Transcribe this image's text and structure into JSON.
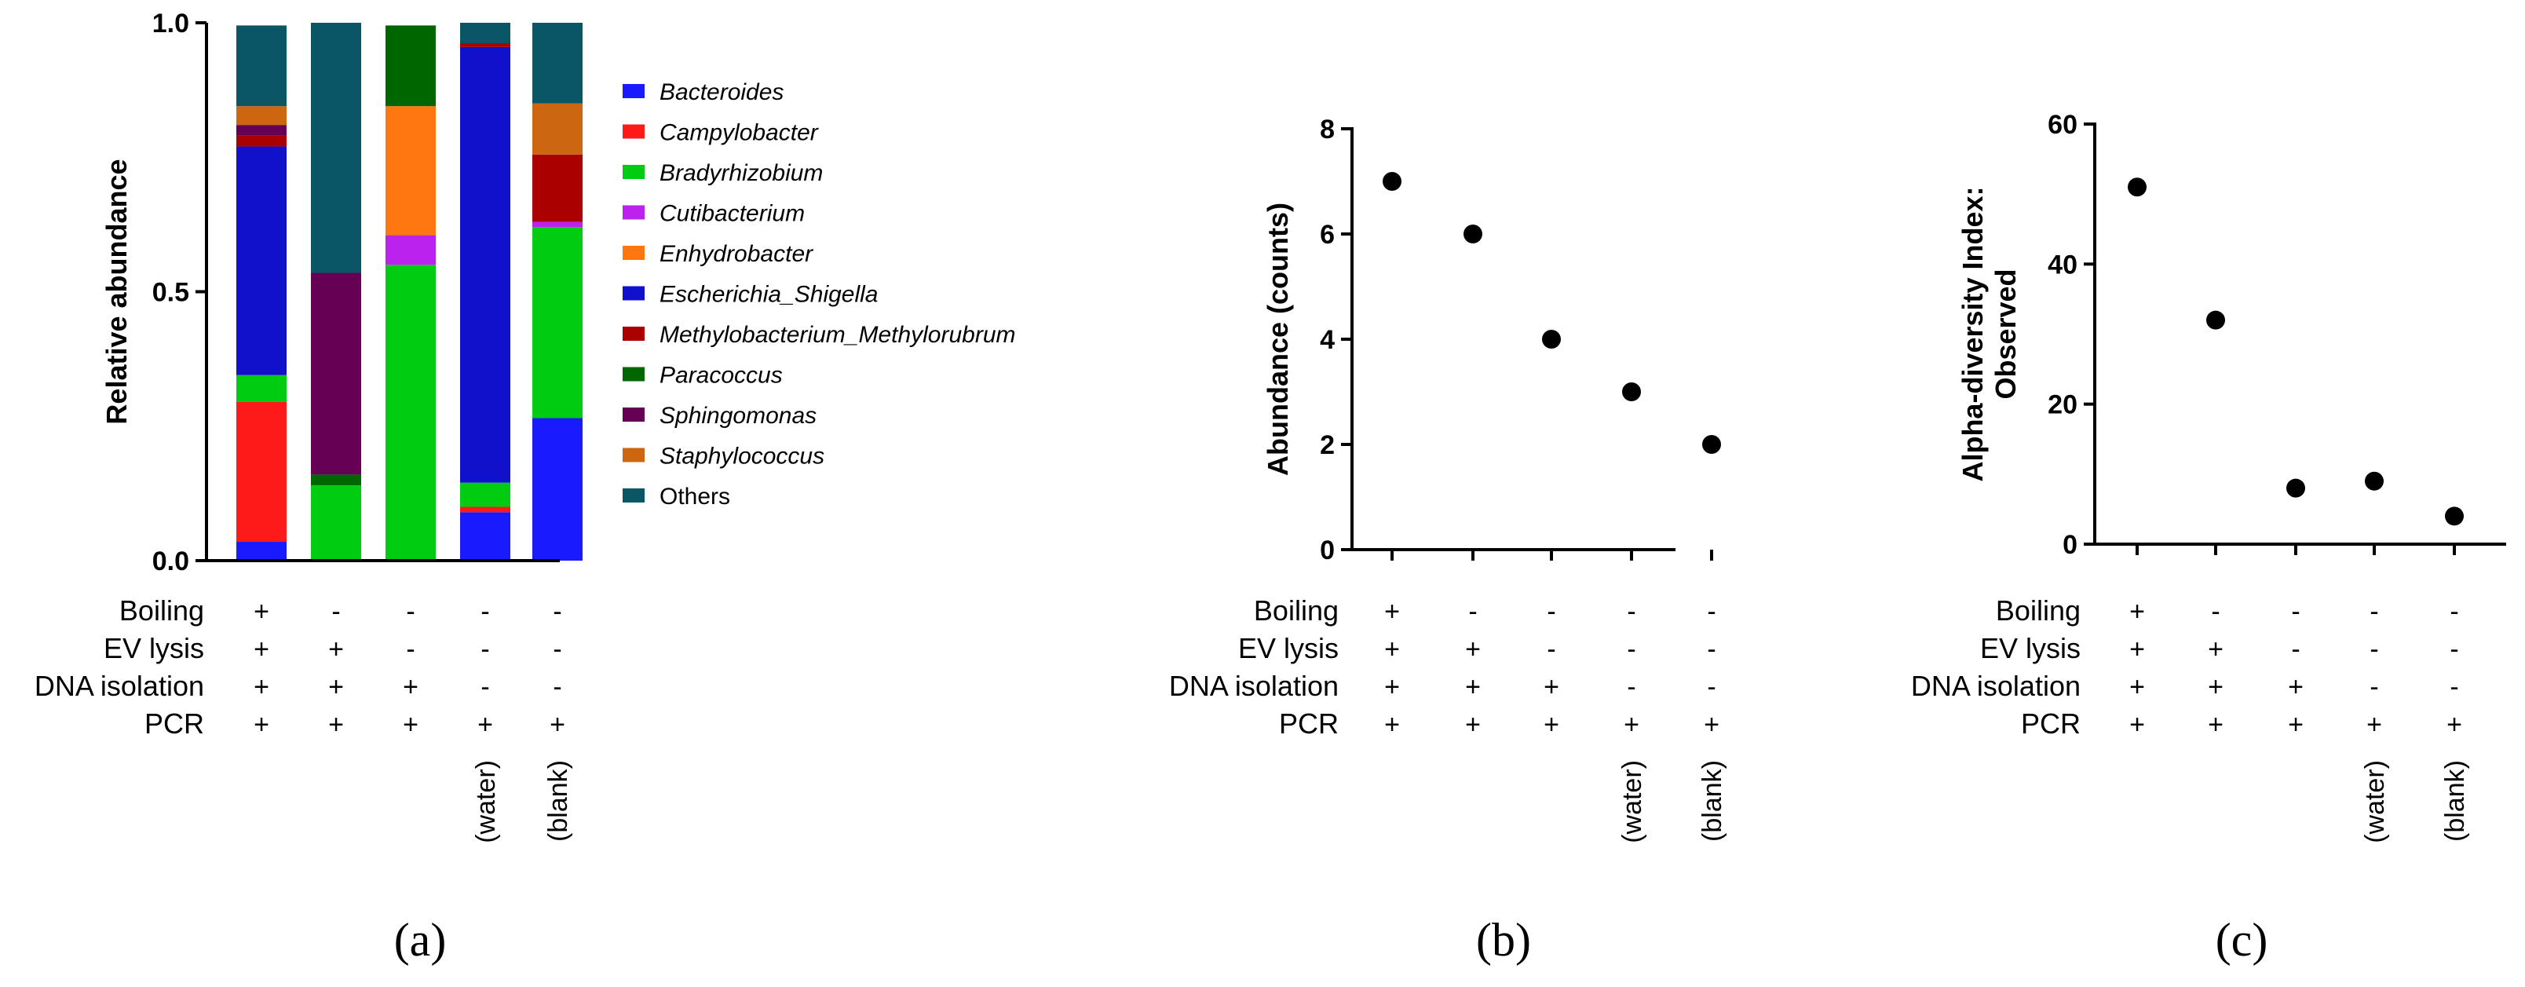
{
  "figure": {
    "condition_labels": [
      "Boiling",
      "EV lysis",
      "DNA isolation",
      "PCR"
    ],
    "sample_notes": [
      "",
      "",
      "",
      "(water)",
      "(blank)"
    ],
    "signs": [
      [
        "+",
        "-",
        "-",
        "-",
        "-"
      ],
      [
        "+",
        "+",
        "-",
        "-",
        "-"
      ],
      [
        "+",
        "+",
        "+",
        "-",
        "-"
      ],
      [
        "+",
        "+",
        "+",
        "+",
        "+"
      ]
    ]
  },
  "chart_data": [
    {
      "panel": "(a)",
      "type": "bar",
      "stacked": true,
      "ylabel": "Relative abundance",
      "ylim": [
        0,
        1
      ],
      "yticks": [
        "0.0",
        "0.5",
        "1.0"
      ],
      "series": [
        {
          "name": "Bacteroides",
          "color": "#1a1aff",
          "values": [
            0.035,
            0.0,
            0.0,
            0.09,
            0.265
          ],
          "italic": true
        },
        {
          "name": "Campylobacter",
          "color": "#ff1a1a",
          "values": [
            0.26,
            0.0,
            0.0,
            0.01,
            0.0
          ],
          "italic": true
        },
        {
          "name": "Bradyrhizobium",
          "color": "#00cc11",
          "values": [
            0.05,
            0.14,
            0.55,
            0.045,
            0.355
          ],
          "italic": true
        },
        {
          "name": "Cutibacterium",
          "color": "#bb22ee",
          "values": [
            0.0,
            0.0,
            0.055,
            0.0,
            0.01
          ],
          "italic": true
        },
        {
          "name": "Enhydrobacter",
          "color": "#ff7711",
          "values": [
            0.0,
            0.0,
            0.24,
            0.0,
            0.0
          ],
          "italic": true
        },
        {
          "name": "Escherichia_Shigella",
          "color": "#1111cc",
          "values": [
            0.425,
            0.0,
            0.0,
            0.81,
            0.0
          ],
          "italic": true
        },
        {
          "name": "Methylobacterium_Methylorubrum",
          "color": "#aa0000",
          "values": [
            0.02,
            0.0,
            0.0,
            0.007,
            0.125
          ],
          "italic": true
        },
        {
          "name": "Paracoccus",
          "color": "#006600",
          "values": [
            0.0,
            0.02,
            0.15,
            0.0,
            0.0
          ],
          "italic": true
        },
        {
          "name": "Sphingomonas",
          "color": "#660055",
          "values": [
            0.02,
            0.375,
            0.0,
            0.0,
            0.0
          ],
          "italic": true
        },
        {
          "name": "Staphylococcus",
          "color": "#cc6611",
          "values": [
            0.035,
            0.0,
            0.0,
            0.0,
            0.095
          ],
          "italic": true
        },
        {
          "name": "Others",
          "color": "#0a5566",
          "values": [
            0.15,
            0.465,
            0.0,
            0.038,
            0.15
          ],
          "italic": false
        }
      ]
    },
    {
      "panel": "(b)",
      "type": "scatter",
      "ylabel": "Abundance (counts)",
      "ylim": [
        0,
        8
      ],
      "yticks": [
        0,
        2,
        4,
        6,
        8
      ],
      "values": [
        7,
        6,
        4,
        3,
        2
      ]
    },
    {
      "panel": "(c)",
      "type": "scatter",
      "ylabel": "Alpha-diversity Index: Observed",
      "ylabel_lines": [
        "Alpha-diversity Index:",
        "Observed"
      ],
      "ylim": [
        0,
        60
      ],
      "yticks": [
        0,
        20,
        40,
        60
      ],
      "values": [
        51,
        32,
        8,
        9,
        4
      ]
    }
  ]
}
